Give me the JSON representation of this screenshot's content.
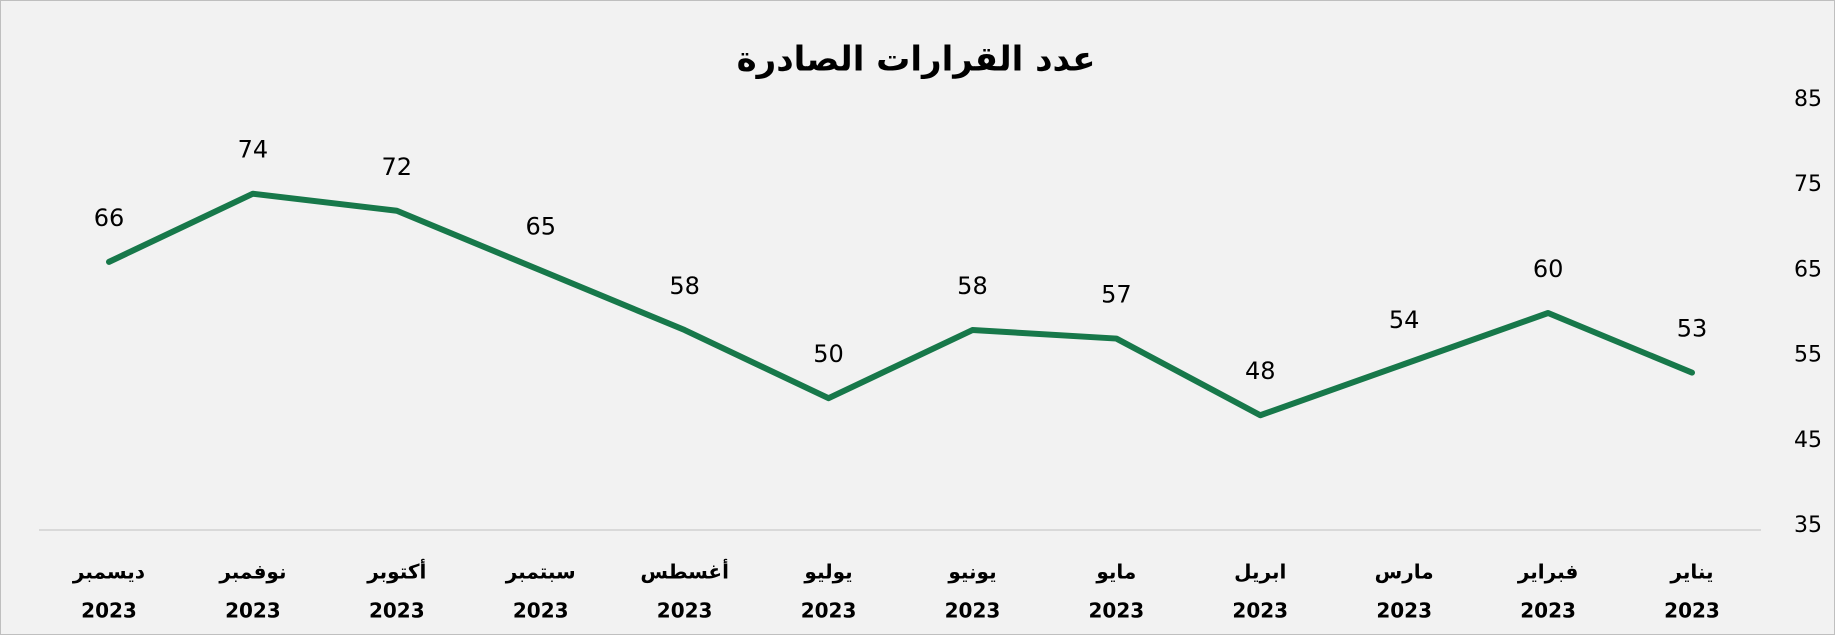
{
  "chart_data": {
    "type": "line",
    "title": "عدد القرارات الصادرة",
    "categories": [
      [
        "يناير",
        "2023"
      ],
      [
        "فبراير",
        "2023"
      ],
      [
        "مارس",
        "2023"
      ],
      [
        "ابريل",
        "2023"
      ],
      [
        "مايو",
        "2023"
      ],
      [
        "يونيو",
        "2023"
      ],
      [
        "يوليو",
        "2023"
      ],
      [
        "أغسطس",
        "2023"
      ],
      [
        "سبتمبر",
        "2023"
      ],
      [
        "أكتوبر",
        "2023"
      ],
      [
        "نوفمبر",
        "2023"
      ],
      [
        "ديسمبر",
        "2023"
      ]
    ],
    "values": [
      53,
      60,
      54,
      48,
      57,
      58,
      50,
      58,
      65,
      72,
      74,
      66
    ],
    "color": "#17784a",
    "ylim": [
      35,
      85
    ],
    "yticks": [
      35,
      45,
      55,
      65,
      75,
      85
    ],
    "x_reversed": true,
    "y_axis_side": "right",
    "grid": false,
    "data_labels": true
  }
}
